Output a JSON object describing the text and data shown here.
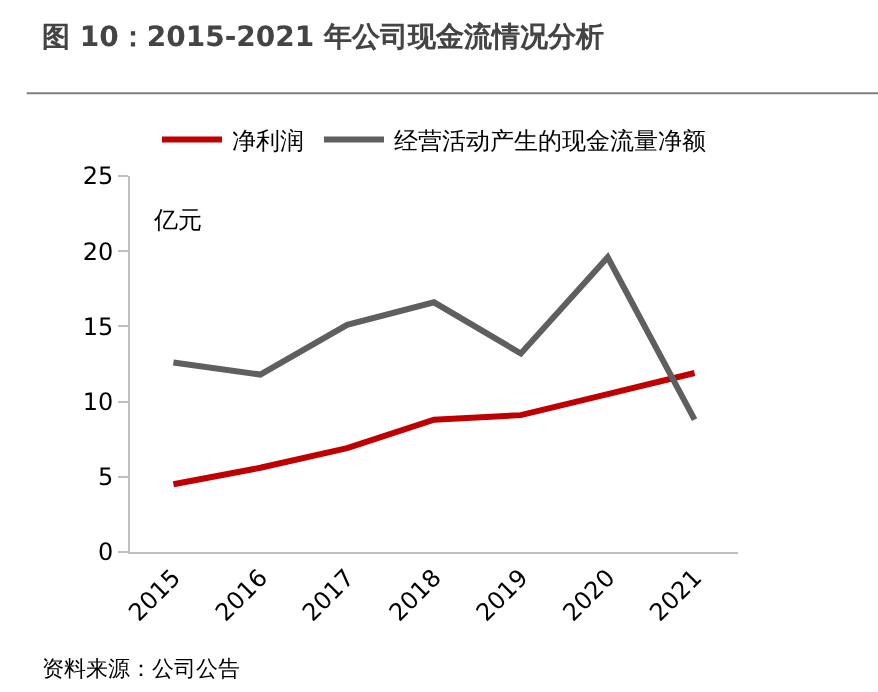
{
  "chart_data": {
    "type": "line",
    "title": "图 10：2015-2021 年公司现金流情况分析",
    "ylabel": "亿元",
    "categories": [
      "2015",
      "2016",
      "2017",
      "2018",
      "2019",
      "2020",
      "2021"
    ],
    "series": [
      {
        "name": "净利润",
        "color": "#c00000",
        "values": [
          4.5,
          5.6,
          6.9,
          8.8,
          9.1,
          10.5,
          11.9
        ]
      },
      {
        "name": "经营活动产生的现金流量净额",
        "color": "#5f5f5f",
        "values": [
          12.6,
          11.8,
          15.1,
          16.6,
          13.2,
          19.6,
          8.8
        ]
      }
    ],
    "ylim": [
      0,
      25
    ],
    "yticks": [
      0,
      5,
      10,
      15,
      20,
      25
    ],
    "legend": "top",
    "marker": "none",
    "line_style": "solid",
    "annotations": [
      "资料来源：公司公告"
    ]
  }
}
